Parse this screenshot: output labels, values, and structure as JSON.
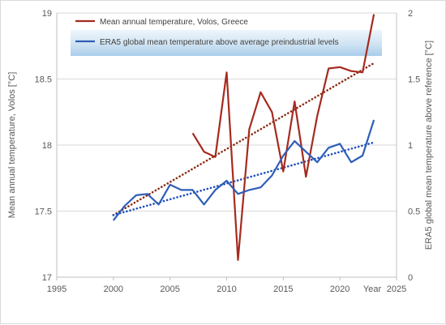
{
  "chart_data": {
    "type": "line",
    "xlabel": "Year",
    "ylabel": "Mean annual temperature, Volos [°C]",
    "y2label": "ERA5 global mean temperature above reference [°C]",
    "xlim": [
      1995,
      2025
    ],
    "ylim": [
      17,
      19
    ],
    "y2lim": [
      0,
      2
    ],
    "x_ticks": [
      "1995",
      "2000",
      "2005",
      "2010",
      "2015",
      "2020",
      "2025"
    ],
    "y_ticks": [
      "17",
      "17.5",
      "18",
      "18.5",
      "19"
    ],
    "y2_ticks": [
      "0",
      "0.5",
      "1",
      "1.5",
      "2"
    ],
    "grid": "horizontal",
    "legend": "top",
    "colors": {
      "volos": "#a52a1e",
      "era5": "#2e5eb8",
      "volos_trend": "#8b2a14",
      "era5_trend": "#1f4fbf"
    },
    "series": [
      {
        "name": "Mean annual temperature, Volos, Greece",
        "axis": "left",
        "x": [
          2007,
          2008,
          2009,
          2010,
          2011,
          2012,
          2013,
          2014,
          2015,
          2016,
          2017,
          2018,
          2019,
          2020,
          2021,
          2022,
          2023
        ],
        "values": [
          18.09,
          17.95,
          17.91,
          18.55,
          17.13,
          18.12,
          18.4,
          18.25,
          17.8,
          18.33,
          17.76,
          18.22,
          18.58,
          18.59,
          18.56,
          18.55,
          18.99
        ]
      },
      {
        "name": "ERA5 global mean temperature above average preindustrial levels",
        "axis": "right",
        "x": [
          2000,
          2001,
          2002,
          2003,
          2004,
          2005,
          2006,
          2007,
          2008,
          2009,
          2010,
          2011,
          2012,
          2013,
          2014,
          2015,
          2016,
          2017,
          2018,
          2019,
          2020,
          2021,
          2022,
          2023
        ],
        "values": [
          0.43,
          0.54,
          0.62,
          0.63,
          0.55,
          0.7,
          0.66,
          0.66,
          0.55,
          0.66,
          0.73,
          0.63,
          0.66,
          0.68,
          0.77,
          0.92,
          1.03,
          0.95,
          0.87,
          0.98,
          1.01,
          0.87,
          0.92,
          1.19
        ]
      }
    ],
    "trendlines": [
      {
        "axis": "left",
        "x": [
          2000,
          2023
        ],
        "values": [
          17.47,
          18.62
        ]
      },
      {
        "axis": "right",
        "x": [
          2000,
          2023
        ],
        "values": [
          0.47,
          1.02
        ]
      }
    ]
  }
}
